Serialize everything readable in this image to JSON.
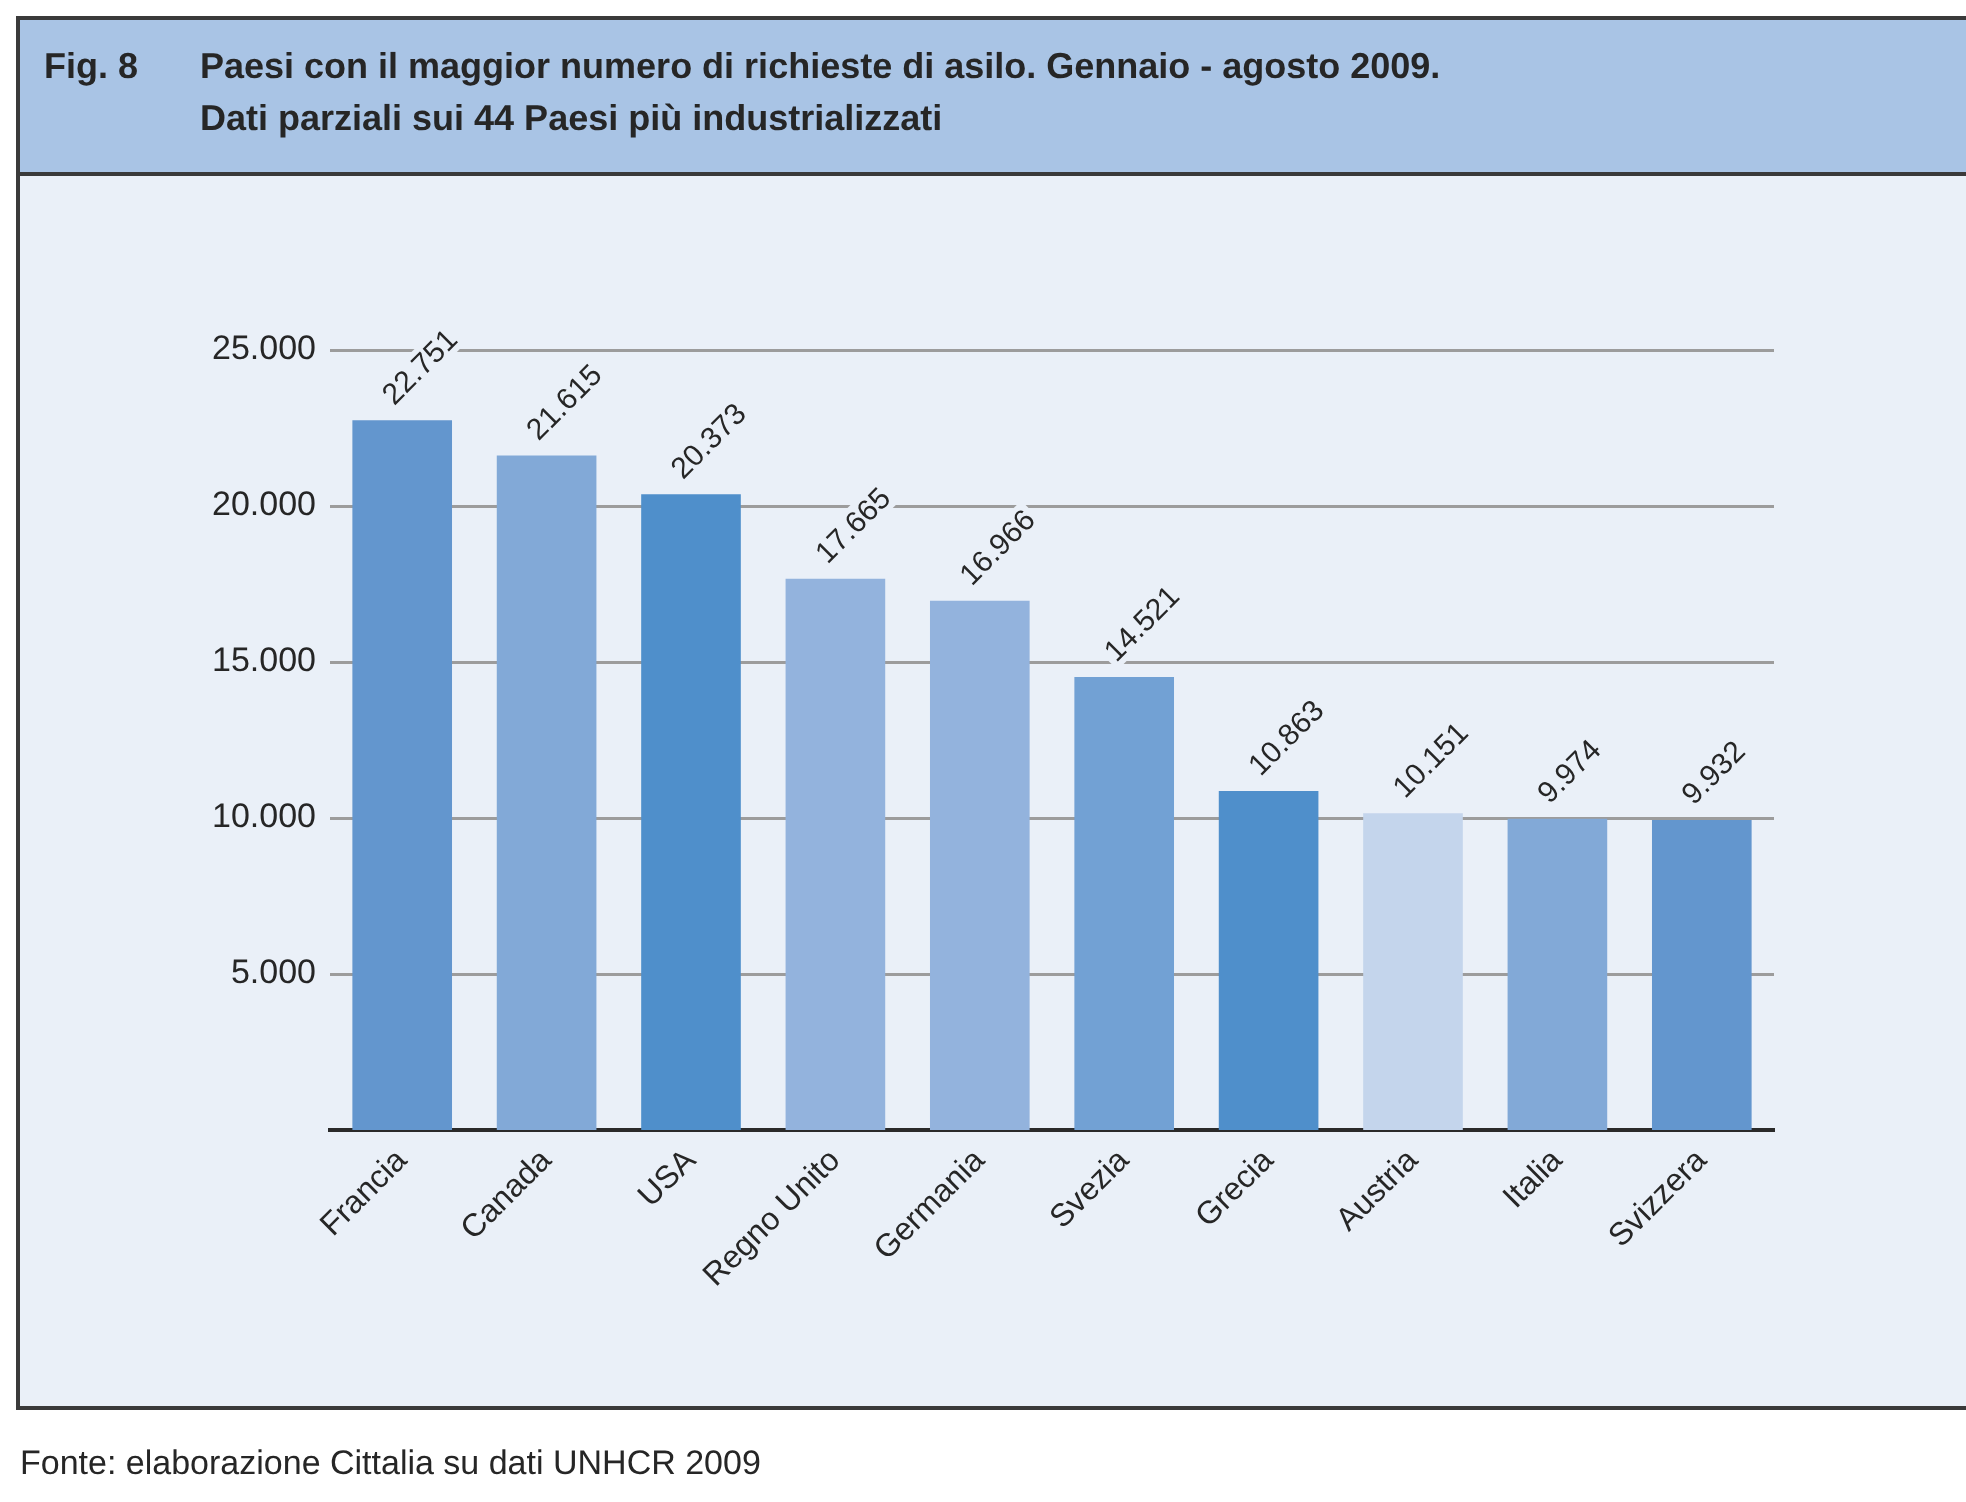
{
  "chart_data": {
    "type": "bar",
    "title": "Paesi con il maggior numero di richieste di asilo. Gennaio - agosto 2009.",
    "subtitle": "Dati parziali sui 44 Paesi più industrializzati",
    "annotations": [
      "Fig. 8",
      "Fonte: elaborazione Cittalia su dati UNHCR 2009"
    ],
    "categories": [
      "Francia",
      "Canada",
      "USA",
      "Regno Unito",
      "Germania",
      "Svezia",
      "Grecia",
      "Austria",
      "Italia",
      "Svizzera"
    ],
    "values": [
      22751,
      21615,
      20373,
      17665,
      16966,
      14521,
      10863,
      10151,
      9974,
      9932
    ],
    "value_labels": [
      "22.751",
      "21.615",
      "20.373",
      "17.665",
      "16.966",
      "14.521",
      "10.863",
      "10.151",
      "9.974",
      "9.932"
    ],
    "colors": [
      "#6396ce",
      "#82a9d7",
      "#4f8fcb",
      "#93b3dd",
      "#93b3dd",
      "#72a1d4",
      "#4f8fcb",
      "#c4d5ec",
      "#82a9d7",
      "#6396ce"
    ],
    "ylim": [
      0,
      25000
    ],
    "yticks": [
      {
        "value": 5000,
        "label": "5.000"
      },
      {
        "value": 10000,
        "label": "10.000"
      },
      {
        "value": 15000,
        "label": "15.000"
      },
      {
        "value": 20000,
        "label": "20.000"
      },
      {
        "value": 25000,
        "label": "25.000"
      }
    ],
    "grid": "y"
  }
}
